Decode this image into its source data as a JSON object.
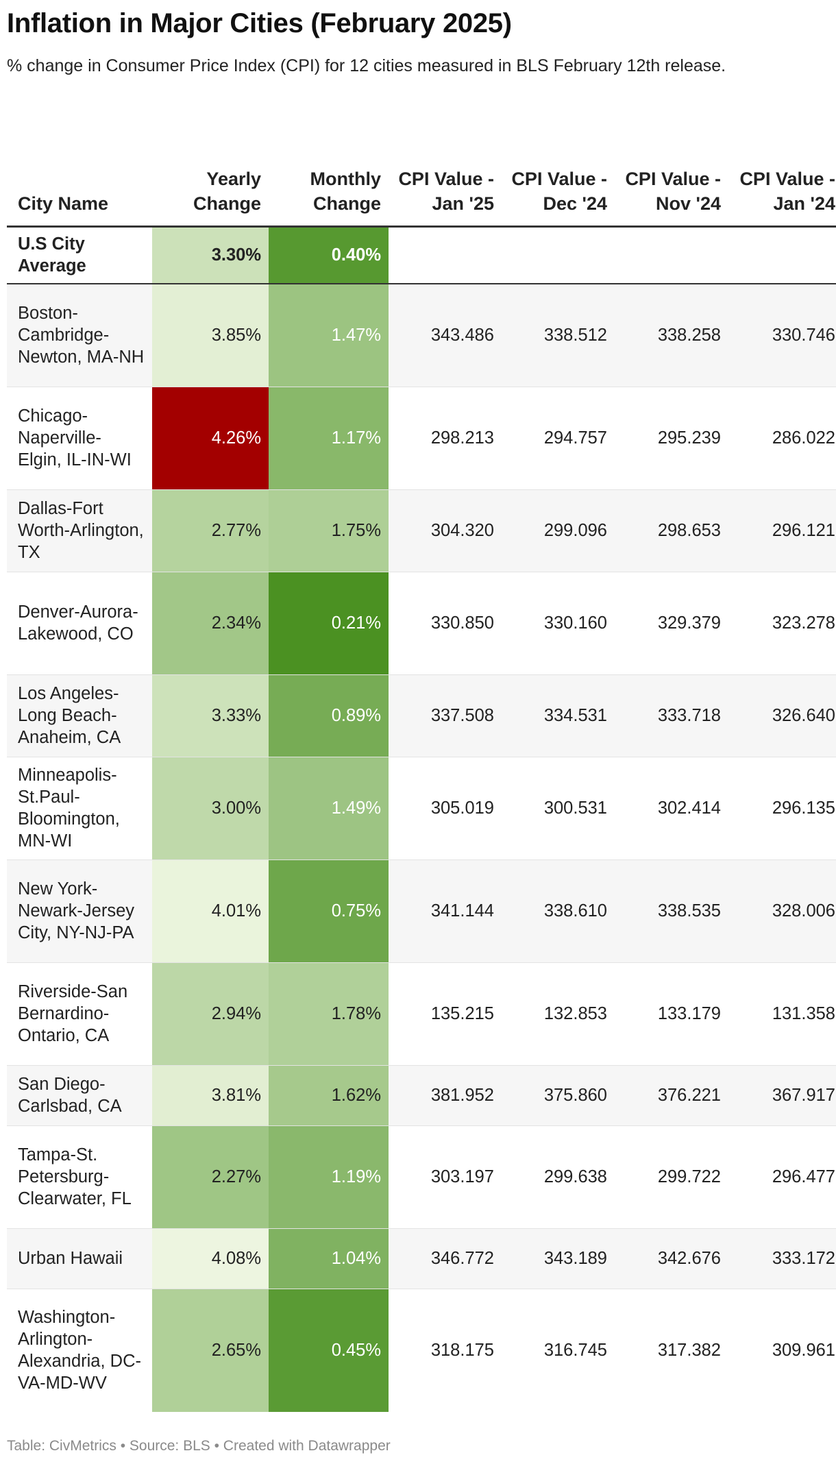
{
  "title": "Inflation in Major Cities (February 2025)",
  "subtitle": "% change in Consumer Price Index (CPI) for 12 cities measured in BLS February 12th release.",
  "footer": "Table: CivMetrics • Source: BLS • Created with Datawrapper",
  "colors": {
    "high_inflation": "#a30000",
    "green_light": "#eef6e1",
    "green_dark": "#4a9121",
    "white_text_threshold": 4.2
  },
  "chart_data": {
    "type": "table",
    "columns": [
      "City Name",
      "Yearly Change",
      "Monthly Change",
      "CPI Value - Jan '25",
      "CPI Value - Dec '24",
      "CPI Value - Nov '24",
      "CPI Value - Jan '24"
    ],
    "average_row": {
      "city": "U.S City Average",
      "yearly": "3.30%",
      "monthly": "0.40%",
      "yearly_value": 3.3,
      "monthly_value": 0.4
    },
    "rows": [
      {
        "city": "Boston-Cambridge-Newton, MA-NH",
        "yearly": "3.85%",
        "monthly": "1.47%",
        "yearly_value": 3.85,
        "monthly_value": 1.47,
        "jan25": "343.486",
        "dec24": "338.512",
        "nov24": "338.258",
        "jan24": "330.746"
      },
      {
        "city": "Chicago-Naperville-Elgin, IL-IN-WI",
        "yearly": "4.26%",
        "monthly": "1.17%",
        "yearly_value": 4.26,
        "monthly_value": 1.17,
        "jan25": "298.213",
        "dec24": "294.757",
        "nov24": "295.239",
        "jan24": "286.022"
      },
      {
        "city": "Dallas-Fort Worth-Arlington, TX",
        "yearly": "2.77%",
        "monthly": "1.75%",
        "yearly_value": 2.77,
        "monthly_value": 1.75,
        "jan25": "304.320",
        "dec24": "299.096",
        "nov24": "298.653",
        "jan24": "296.121"
      },
      {
        "city": "Denver-Aurora-Lakewood, CO",
        "yearly": "2.34%",
        "monthly": "0.21%",
        "yearly_value": 2.34,
        "monthly_value": 0.21,
        "jan25": "330.850",
        "dec24": "330.160",
        "nov24": "329.379",
        "jan24": "323.278"
      },
      {
        "city": "Los Angeles-Long Beach-Anaheim, CA",
        "yearly": "3.33%",
        "monthly": "0.89%",
        "yearly_value": 3.33,
        "monthly_value": 0.89,
        "jan25": "337.508",
        "dec24": "334.531",
        "nov24": "333.718",
        "jan24": "326.640"
      },
      {
        "city": "Minneapolis-St.Paul-Bloomington, MN-WI",
        "yearly": "3.00%",
        "monthly": "1.49%",
        "yearly_value": 3.0,
        "monthly_value": 1.49,
        "jan25": "305.019",
        "dec24": "300.531",
        "nov24": "302.414",
        "jan24": "296.135"
      },
      {
        "city": "New York-Newark-Jersey City, NY-NJ-PA",
        "yearly": "4.01%",
        "monthly": "0.75%",
        "yearly_value": 4.01,
        "monthly_value": 0.75,
        "jan25": "341.144",
        "dec24": "338.610",
        "nov24": "338.535",
        "jan24": "328.006"
      },
      {
        "city": "Riverside-San Bernardino-Ontario, CA",
        "yearly": "2.94%",
        "monthly": "1.78%",
        "yearly_value": 2.94,
        "monthly_value": 1.78,
        "jan25": "135.215",
        "dec24": "132.853",
        "nov24": "133.179",
        "jan24": "131.358"
      },
      {
        "city": "San Diego-Carlsbad, CA",
        "yearly": "3.81%",
        "monthly": "1.62%",
        "yearly_value": 3.81,
        "monthly_value": 1.62,
        "jan25": "381.952",
        "dec24": "375.860",
        "nov24": "376.221",
        "jan24": "367.917"
      },
      {
        "city": "Tampa-St. Petersburg-Clearwater, FL",
        "yearly": "2.27%",
        "monthly": "1.19%",
        "yearly_value": 2.27,
        "monthly_value": 1.19,
        "jan25": "303.197",
        "dec24": "299.638",
        "nov24": "299.722",
        "jan24": "296.477"
      },
      {
        "city": "Urban Hawaii",
        "yearly": "4.08%",
        "monthly": "1.04%",
        "yearly_value": 4.08,
        "monthly_value": 1.04,
        "jan25": "346.772",
        "dec24": "343.189",
        "nov24": "342.676",
        "jan24": "333.172"
      },
      {
        "city": "Washington-Arlington-Alexandria, DC-VA-MD-WV",
        "yearly": "2.65%",
        "monthly": "0.45%",
        "yearly_value": 2.65,
        "monthly_value": 0.45,
        "jan25": "318.175",
        "dec24": "316.745",
        "nov24": "317.382",
        "jan24": "309.961"
      }
    ]
  }
}
